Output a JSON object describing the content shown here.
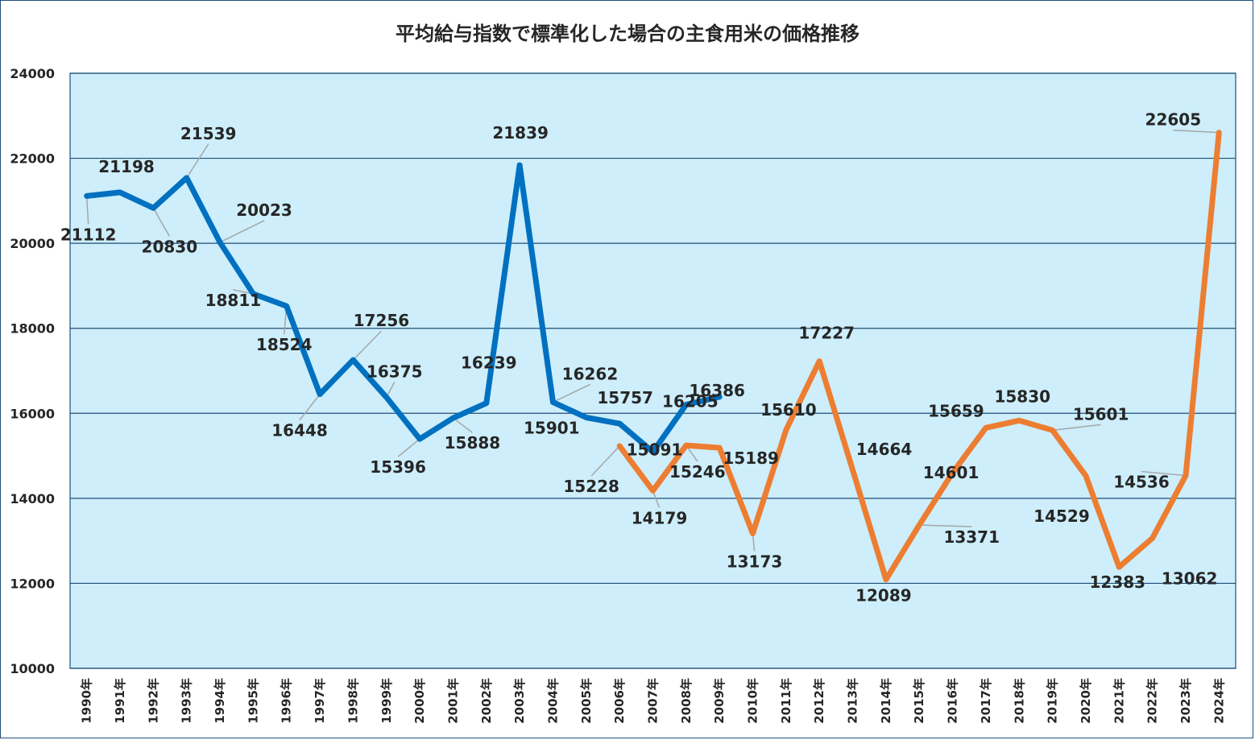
{
  "chart_data": {
    "type": "line",
    "title": "平均給与指数で標準化した場合の主食用米の価格推移",
    "xlabel": "",
    "ylabel": "",
    "ylim": [
      10000,
      24000
    ],
    "y_ticks": [
      "24000",
      "22000",
      "20000",
      "18000",
      "16000",
      "14000",
      "12000",
      "10000"
    ],
    "grid": true,
    "legend": "none",
    "categories": [
      "1990年",
      "1991年",
      "1992年",
      "1993年",
      "1994年",
      "1995年",
      "1996年",
      "1997年",
      "1998年",
      "1999年",
      "2000年",
      "2001年",
      "2002年",
      "2003年",
      "2004年",
      "2005年",
      "2006年",
      "2007年",
      "2008年",
      "2009年",
      "2010年",
      "2011年",
      "2012年",
      "2013年",
      "2014年",
      "2015年",
      "2016年",
      "2017年",
      "2018年",
      "2019年",
      "2020年",
      "2021年",
      "2022年",
      "2023年",
      "2024年"
    ],
    "series": [
      {
        "color": "#0070c0",
        "values": [
          21112,
          21198,
          20830,
          21539,
          20023,
          18811,
          18524,
          16448,
          17256,
          16375,
          15396,
          15888,
          16239,
          21839,
          16262,
          15901,
          15757,
          15091,
          16205,
          16386,
          null,
          null,
          null,
          null,
          null,
          null,
          null,
          null,
          null,
          null,
          null,
          null,
          null,
          null,
          null
        ]
      },
      {
        "color": "#ed7d31",
        "values": [
          null,
          null,
          null,
          null,
          null,
          null,
          null,
          null,
          null,
          null,
          null,
          null,
          null,
          null,
          null,
          null,
          15228,
          14179,
          15246,
          15189,
          13173,
          15610,
          17227,
          14664,
          12089,
          13371,
          14601,
          15659,
          15830,
          15601,
          14529,
          12383,
          13062,
          14536,
          22605
        ]
      }
    ],
    "colors": {
      "plot_bg": "#cdeefa",
      "gridline": "#1f4e79",
      "border": "#1f4e79",
      "leader": "#a6a6a6"
    }
  }
}
